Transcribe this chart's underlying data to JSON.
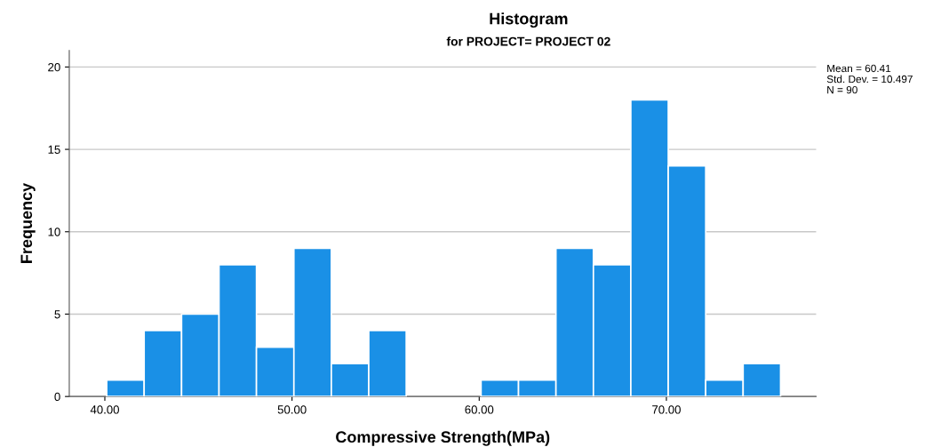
{
  "chart_data": {
    "type": "histogram",
    "title": "Histogram",
    "subtitle": "for PROJECT= PROJECT 02",
    "xlabel": "Compressive Strength(MPa)",
    "ylabel": "Frequency",
    "bins": [
      40.1,
      42.1,
      44.1,
      46.1,
      48.1,
      50.1,
      52.1,
      54.1,
      56.1,
      58.1,
      60.1,
      62.1,
      64.1,
      66.1,
      68.1,
      70.1,
      72.1,
      74.1,
      76.1
    ],
    "values": [
      1,
      4,
      5,
      8,
      3,
      9,
      2,
      4,
      0,
      0,
      1,
      1,
      9,
      8,
      18,
      14,
      1,
      2
    ],
    "color": "#1a90e6",
    "xlim": [
      38.1,
      78.0
    ],
    "ylim": [
      0,
      21
    ],
    "xticks": [
      {
        "value": 40,
        "label": "40.00"
      },
      {
        "value": 50,
        "label": "50.00"
      },
      {
        "value": 60,
        "label": "60.00"
      },
      {
        "value": 70,
        "label": "70.00"
      }
    ],
    "yticks": [
      0,
      5,
      10,
      15,
      20
    ],
    "grid": "y",
    "legend": false,
    "annotations": [
      "Mean = 60.41",
      "Std. Dev. = 10.497",
      "N = 90"
    ]
  }
}
